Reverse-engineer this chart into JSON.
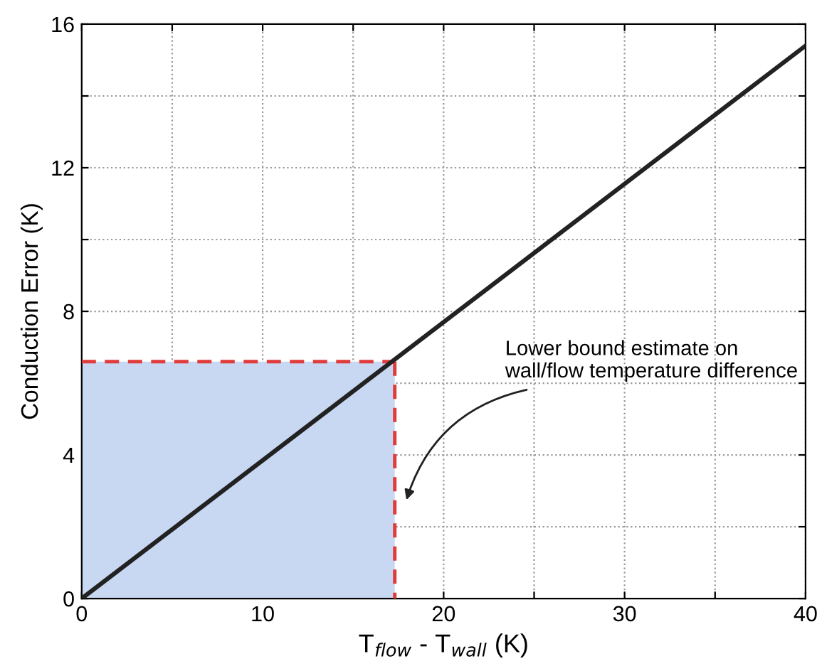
{
  "chart_data": {
    "type": "line",
    "xlabel": "T$_{flow}$ - T$_{wall}$ (K)",
    "ylabel": "Conduction Error (K)",
    "xlim": [
      0,
      40
    ],
    "ylim": [
      0,
      16
    ],
    "xticks": [
      0,
      {
        "value": 5,
        "label": null
      },
      10,
      {
        "value": 15,
        "label": null
      },
      20,
      {
        "value": 25,
        "label": null
      },
      30,
      {
        "value": 35,
        "label": null
      },
      40
    ],
    "yticks": [
      0,
      {
        "value": 2,
        "label": null
      },
      4,
      {
        "value": 6,
        "label": null
      },
      8,
      {
        "value": 10,
        "label": null
      },
      12,
      {
        "value": 14,
        "label": null
      },
      16
    ],
    "grid": true,
    "marker": "none",
    "series": [
      {
        "type": "area",
        "color": "#c8d8f2",
        "x": [
          0,
          17.3
        ],
        "values": [
          6.6,
          6.6
        ]
      },
      {
        "color": "#e03c3c",
        "line_style": "dashed",
        "x": [
          0,
          17.3
        ],
        "values": [
          6.6,
          6.6
        ]
      },
      {
        "color": "#e03c3c",
        "line_style": "dashed",
        "x": [
          17.3,
          17.3
        ],
        "values": [
          6.6,
          0
        ]
      },
      {
        "color": "#222222",
        "line_style": "solid",
        "x": [
          0,
          40
        ],
        "values": [
          0,
          15.4
        ]
      }
    ],
    "annotations": [
      "Lower bound estimate on\nwall/flow temperature difference"
    ]
  }
}
